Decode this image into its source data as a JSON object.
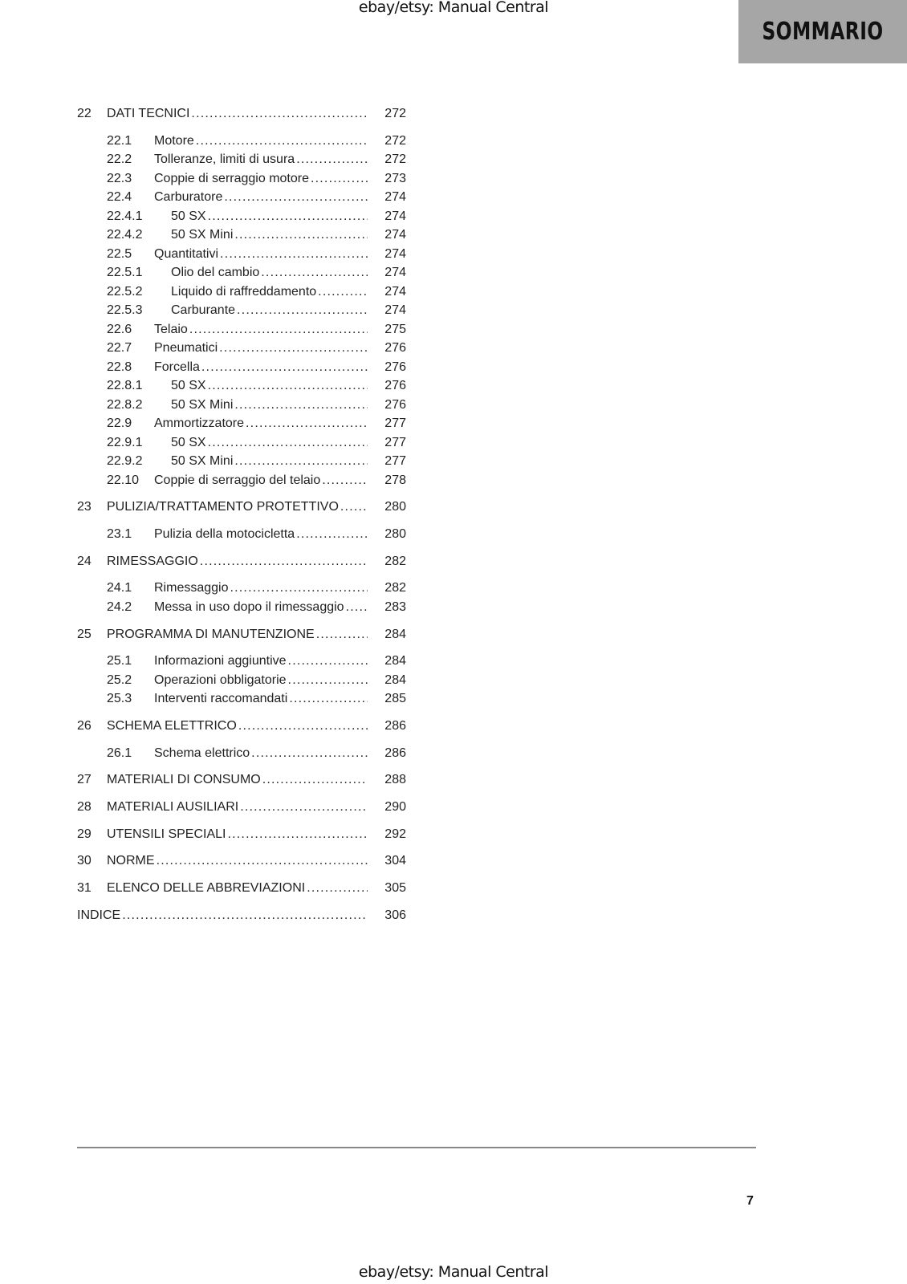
{
  "watermark_top": "ebay/etsy: Manual Central",
  "watermark_bottom": "ebay/etsy: Manual Central",
  "section_title": "SOMMARIO",
  "section_tab_color": "#a6a6a6",
  "page_number": "7",
  "toc": [
    {
      "level": 1,
      "num": "22",
      "title": "DATI TECNICI",
      "page": "272"
    },
    {
      "level": 2,
      "num": "22.1",
      "title": "Motore",
      "page": "272"
    },
    {
      "level": 2,
      "num": "22.2",
      "title": "Tolleranze, limiti di usura",
      "page": "272"
    },
    {
      "level": 2,
      "num": "22.3",
      "title": "Coppie di serraggio motore",
      "page": "273"
    },
    {
      "level": 2,
      "num": "22.4",
      "title": "Carburatore",
      "page": "274"
    },
    {
      "level": 3,
      "num": "22.4.1",
      "title": "50 SX",
      "page": "274"
    },
    {
      "level": 3,
      "num": "22.4.2",
      "title": "50 SX Mini",
      "page": "274"
    },
    {
      "level": 2,
      "num": "22.5",
      "title": "Quantitativi",
      "page": "274"
    },
    {
      "level": 3,
      "num": "22.5.1",
      "title": "Olio del cambio",
      "page": "274"
    },
    {
      "level": 3,
      "num": "22.5.2",
      "title": "Liquido di raffreddamento",
      "page": "274"
    },
    {
      "level": 3,
      "num": "22.5.3",
      "title": "Carburante",
      "page": "274"
    },
    {
      "level": 2,
      "num": "22.6",
      "title": "Telaio",
      "page": "275"
    },
    {
      "level": 2,
      "num": "22.7",
      "title": "Pneumatici",
      "page": "276"
    },
    {
      "level": 2,
      "num": "22.8",
      "title": "Forcella",
      "page": "276"
    },
    {
      "level": 3,
      "num": "22.8.1",
      "title": "50 SX",
      "page": "276"
    },
    {
      "level": 3,
      "num": "22.8.2",
      "title": "50 SX Mini",
      "page": "276"
    },
    {
      "level": 2,
      "num": "22.9",
      "title": "Ammortizzatore",
      "page": "277"
    },
    {
      "level": 3,
      "num": "22.9.1",
      "title": "50 SX",
      "page": "277"
    },
    {
      "level": 3,
      "num": "22.9.2",
      "title": "50 SX Mini",
      "page": "277"
    },
    {
      "level": 2,
      "num": "22.10",
      "title": "Coppie di serraggio del telaio",
      "page": "278"
    },
    {
      "level": 1,
      "num": "23",
      "title": "PULIZIA/TRATTAMENTO PROTETTIVO",
      "page": "280"
    },
    {
      "level": 2,
      "num": "23.1",
      "title": "Pulizia della motocicletta",
      "page": "280"
    },
    {
      "level": 1,
      "num": "24",
      "title": "RIMESSAGGIO",
      "page": "282"
    },
    {
      "level": 2,
      "num": "24.1",
      "title": "Rimessaggio",
      "page": "282"
    },
    {
      "level": 2,
      "num": "24.2",
      "title": "Messa in uso dopo il rimessaggio",
      "page": "283"
    },
    {
      "level": 1,
      "num": "25",
      "title": "PROGRAMMA DI MANUTENZIONE",
      "page": "284"
    },
    {
      "level": 2,
      "num": "25.1",
      "title": "Informazioni aggiuntive",
      "page": "284"
    },
    {
      "level": 2,
      "num": "25.2",
      "title": "Operazioni obbligatorie",
      "page": "284"
    },
    {
      "level": 2,
      "num": "25.3",
      "title": "Interventi raccomandati",
      "page": "285"
    },
    {
      "level": 1,
      "num": "26",
      "title": "SCHEMA ELETTRICO",
      "page": "286"
    },
    {
      "level": 2,
      "num": "26.1",
      "title": "Schema elettrico",
      "page": "286"
    },
    {
      "level": 1,
      "num": "27",
      "title": "MATERIALI DI CONSUMO",
      "page": "288"
    },
    {
      "level": 1,
      "num": "28",
      "title": "MATERIALI AUSILIARI",
      "page": "290"
    },
    {
      "level": 1,
      "num": "29",
      "title": "UTENSILI SPECIALI",
      "page": "292"
    },
    {
      "level": 1,
      "num": "30",
      "title": "NORME",
      "page": "304"
    },
    {
      "level": 1,
      "num": "31",
      "title": "ELENCO DELLE ABBREVIAZIONI",
      "page": "305"
    },
    {
      "level": 0,
      "num": "",
      "title": "INDICE",
      "page": "306"
    }
  ]
}
